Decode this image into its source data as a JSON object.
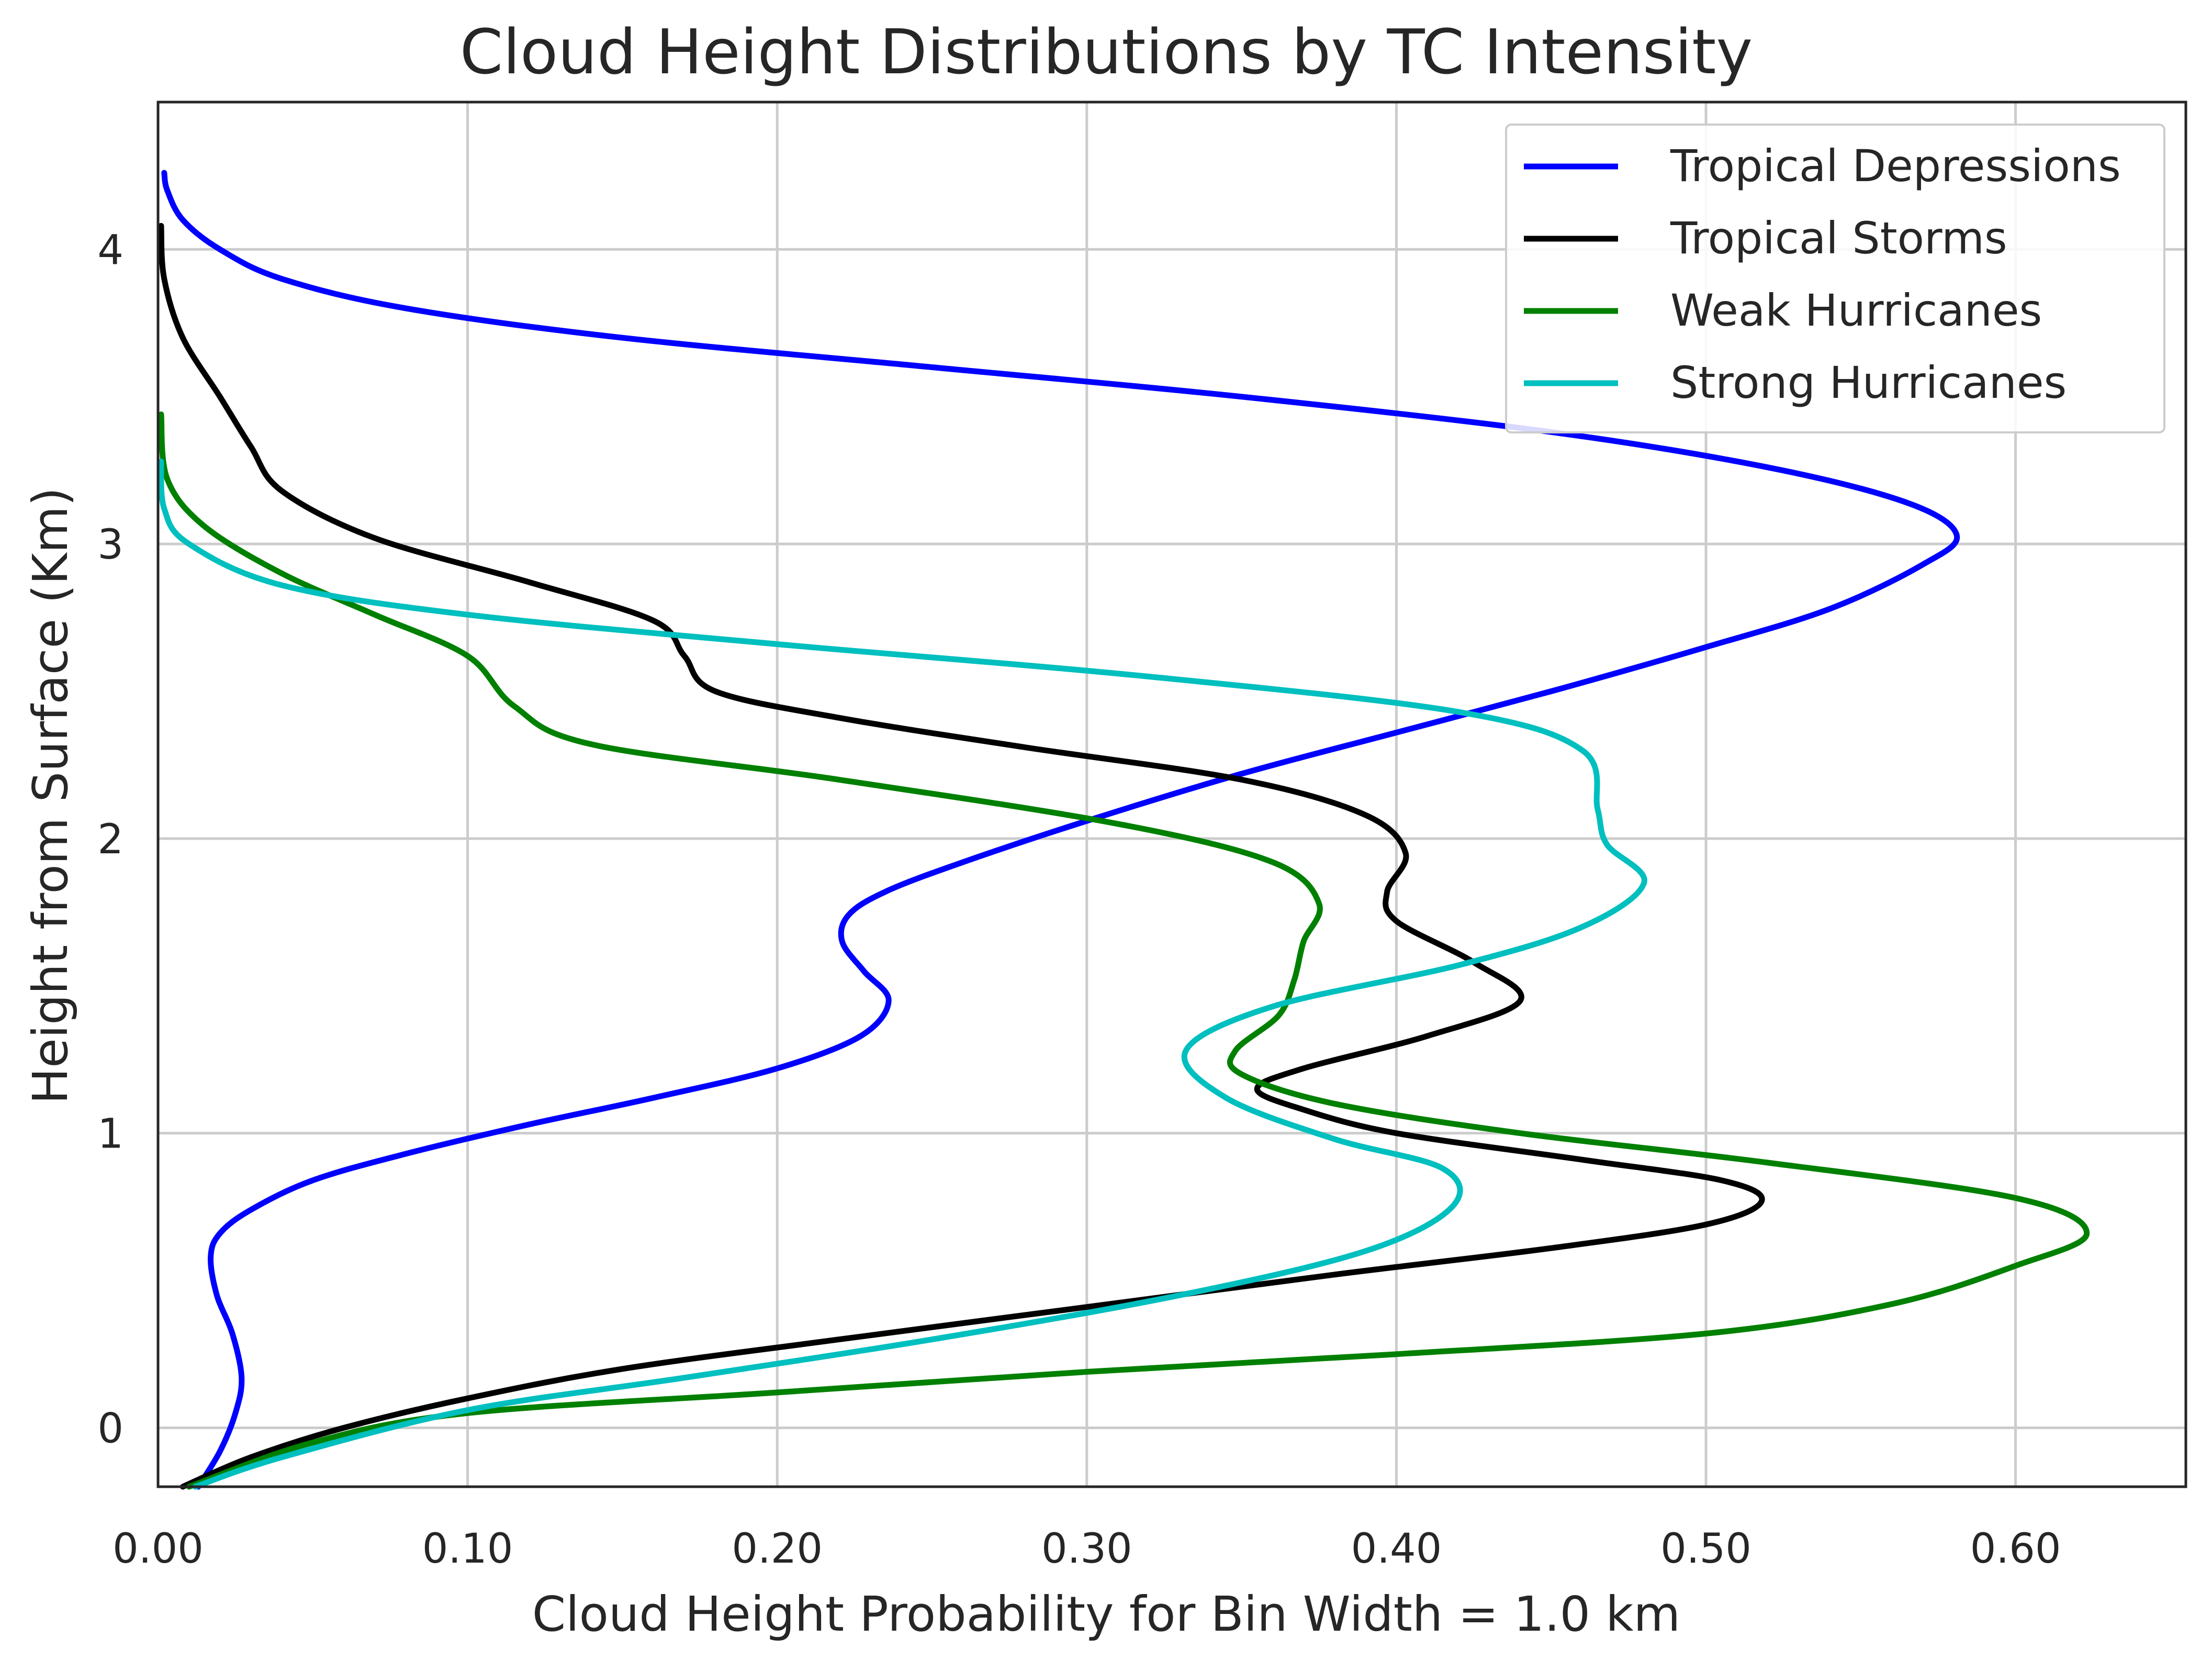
{
  "chart_data": {
    "type": "line",
    "title": "Cloud Height Distributions by TC Intensity",
    "xlabel": "Cloud Height Probability for Bin Width = 1.0 km",
    "ylabel": "Height from Surface (Km)",
    "xlim": [
      0.0,
      0.655
    ],
    "ylim": [
      -0.2,
      4.5
    ],
    "xticks": [
      0.0,
      0.1,
      0.2,
      0.3,
      0.4,
      0.5,
      0.6
    ],
    "xtick_labels": [
      "0.00",
      "0.10",
      "0.20",
      "0.30",
      "0.40",
      "0.50",
      "0.60"
    ],
    "yticks": [
      0,
      1,
      2,
      3,
      4
    ],
    "ytick_labels": [
      "0",
      "1",
      "2",
      "3",
      "4"
    ],
    "grid": true,
    "legend_position": "top-right",
    "series": [
      {
        "name": "Tropical Depressions",
        "color": "#0000ff",
        "points": [
          [
            0.013,
            -0.2
          ],
          [
            0.02,
            -0.08
          ],
          [
            0.025,
            0.05
          ],
          [
            0.027,
            0.17
          ],
          [
            0.024,
            0.32
          ],
          [
            0.019,
            0.45
          ],
          [
            0.017,
            0.58
          ],
          [
            0.02,
            0.66
          ],
          [
            0.03,
            0.74
          ],
          [
            0.05,
            0.84
          ],
          [
            0.08,
            0.93
          ],
          [
            0.12,
            1.03
          ],
          [
            0.16,
            1.12
          ],
          [
            0.2,
            1.22
          ],
          [
            0.227,
            1.33
          ],
          [
            0.236,
            1.45
          ],
          [
            0.228,
            1.55
          ],
          [
            0.221,
            1.65
          ],
          [
            0.223,
            1.74
          ],
          [
            0.235,
            1.82
          ],
          [
            0.26,
            1.92
          ],
          [
            0.3,
            2.06
          ],
          [
            0.35,
            2.22
          ],
          [
            0.4,
            2.36
          ],
          [
            0.45,
            2.5
          ],
          [
            0.5,
            2.65
          ],
          [
            0.54,
            2.78
          ],
          [
            0.57,
            2.93
          ],
          [
            0.581,
            3.03
          ],
          [
            0.565,
            3.14
          ],
          [
            0.52,
            3.26
          ],
          [
            0.45,
            3.38
          ],
          [
            0.35,
            3.5
          ],
          [
            0.25,
            3.6
          ],
          [
            0.15,
            3.7
          ],
          [
            0.08,
            3.8
          ],
          [
            0.04,
            3.9
          ],
          [
            0.02,
            4.0
          ],
          [
            0.008,
            4.1
          ],
          [
            0.003,
            4.2
          ],
          [
            0.002,
            4.26
          ]
        ]
      },
      {
        "name": "Tropical Storms",
        "color": "#000000",
        "points": [
          [
            0.008,
            -0.2
          ],
          [
            0.03,
            -0.1
          ],
          [
            0.06,
            0.0
          ],
          [
            0.1,
            0.1
          ],
          [
            0.15,
            0.2
          ],
          [
            0.22,
            0.3
          ],
          [
            0.3,
            0.41
          ],
          [
            0.38,
            0.52
          ],
          [
            0.45,
            0.61
          ],
          [
            0.5,
            0.69
          ],
          [
            0.518,
            0.77
          ],
          [
            0.505,
            0.84
          ],
          [
            0.46,
            0.91
          ],
          [
            0.4,
            1.0
          ],
          [
            0.37,
            1.08
          ],
          [
            0.355,
            1.15
          ],
          [
            0.37,
            1.22
          ],
          [
            0.41,
            1.33
          ],
          [
            0.44,
            1.45
          ],
          [
            0.425,
            1.58
          ],
          [
            0.4,
            1.72
          ],
          [
            0.397,
            1.82
          ],
          [
            0.403,
            1.95
          ],
          [
            0.39,
            2.08
          ],
          [
            0.35,
            2.2
          ],
          [
            0.28,
            2.31
          ],
          [
            0.22,
            2.41
          ],
          [
            0.18,
            2.5
          ],
          [
            0.17,
            2.62
          ],
          [
            0.16,
            2.74
          ],
          [
            0.12,
            2.87
          ],
          [
            0.07,
            3.02
          ],
          [
            0.04,
            3.18
          ],
          [
            0.03,
            3.33
          ],
          [
            0.02,
            3.5
          ],
          [
            0.008,
            3.7
          ],
          [
            0.002,
            3.9
          ],
          [
            0.001,
            4.08
          ]
        ]
      },
      {
        "name": "Weak Hurricanes",
        "color": "#008000",
        "points": [
          [
            0.01,
            -0.2
          ],
          [
            0.05,
            -0.05
          ],
          [
            0.1,
            0.05
          ],
          [
            0.2,
            0.12
          ],
          [
            0.3,
            0.19
          ],
          [
            0.4,
            0.25
          ],
          [
            0.5,
            0.32
          ],
          [
            0.56,
            0.42
          ],
          [
            0.6,
            0.55
          ],
          [
            0.623,
            0.66
          ],
          [
            0.6,
            0.78
          ],
          [
            0.52,
            0.9
          ],
          [
            0.44,
            1.0
          ],
          [
            0.38,
            1.1
          ],
          [
            0.35,
            1.2
          ],
          [
            0.348,
            1.28
          ],
          [
            0.362,
            1.4
          ],
          [
            0.367,
            1.52
          ],
          [
            0.37,
            1.65
          ],
          [
            0.375,
            1.78
          ],
          [
            0.36,
            1.92
          ],
          [
            0.31,
            2.05
          ],
          [
            0.22,
            2.2
          ],
          [
            0.14,
            2.32
          ],
          [
            0.115,
            2.45
          ],
          [
            0.1,
            2.62
          ],
          [
            0.07,
            2.76
          ],
          [
            0.04,
            2.9
          ],
          [
            0.015,
            3.06
          ],
          [
            0.003,
            3.22
          ],
          [
            0.001,
            3.44
          ]
        ]
      },
      {
        "name": "Strong Hurricanes",
        "color": "#00bfbf",
        "points": [
          [
            0.012,
            -0.2
          ],
          [
            0.04,
            -0.1
          ],
          [
            0.1,
            0.06
          ],
          [
            0.17,
            0.17
          ],
          [
            0.25,
            0.3
          ],
          [
            0.33,
            0.45
          ],
          [
            0.39,
            0.6
          ],
          [
            0.418,
            0.75
          ],
          [
            0.415,
            0.88
          ],
          [
            0.38,
            0.98
          ],
          [
            0.345,
            1.12
          ],
          [
            0.332,
            1.28
          ],
          [
            0.36,
            1.43
          ],
          [
            0.42,
            1.57
          ],
          [
            0.46,
            1.7
          ],
          [
            0.48,
            1.85
          ],
          [
            0.468,
            1.98
          ],
          [
            0.465,
            2.1
          ],
          [
            0.46,
            2.3
          ],
          [
            0.42,
            2.43
          ],
          [
            0.32,
            2.55
          ],
          [
            0.2,
            2.66
          ],
          [
            0.1,
            2.76
          ],
          [
            0.04,
            2.86
          ],
          [
            0.01,
            3.0
          ],
          [
            0.002,
            3.12
          ],
          [
            0.001,
            3.28
          ]
        ]
      }
    ]
  }
}
